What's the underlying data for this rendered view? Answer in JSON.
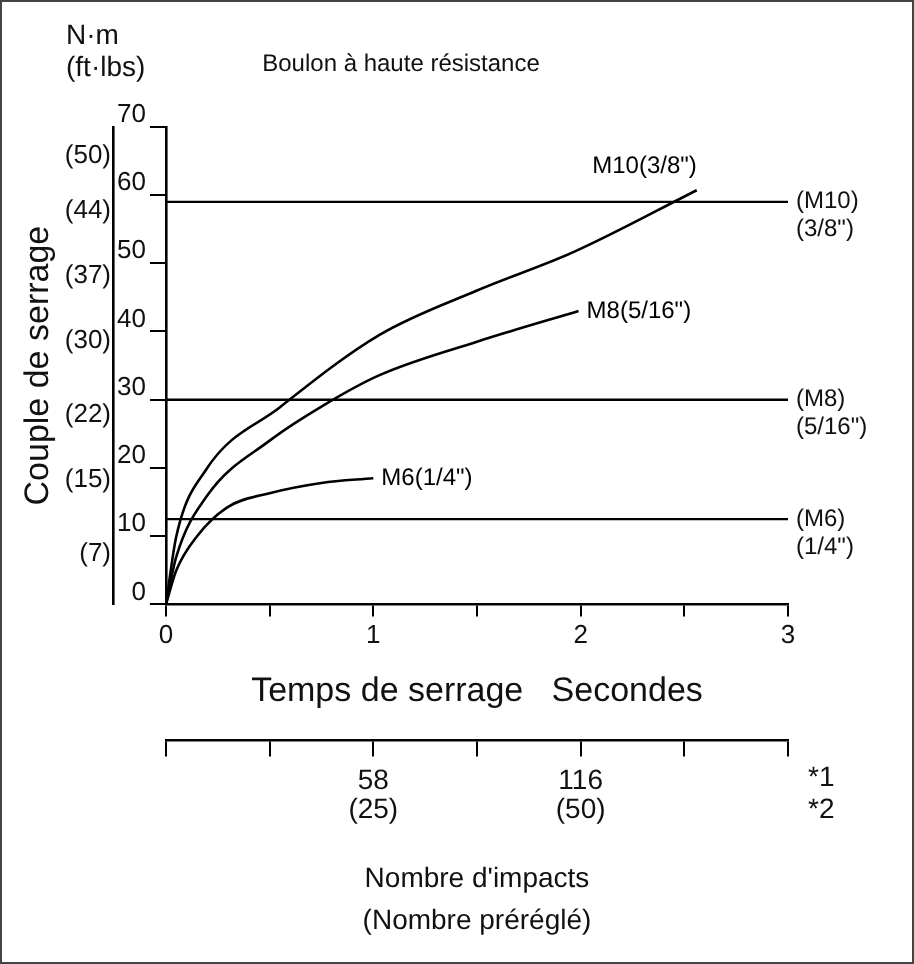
{
  "chart_data": {
    "type": "line",
    "title": "Boulon à haute résistance",
    "y2label": "Couple de serrage",
    "xlabel": "Temps de serrage   Secondes",
    "x2label": "Nombre d'impacts\n(Nombre préréglé)",
    "annotations": [
      "N·m\n(ft·lbs)",
      "(25)",
      "(50)",
      "*1",
      "*2"
    ],
    "xlim": [
      0,
      3
    ],
    "xticks": [
      0,
      {
        "value": 0.5,
        "label": null
      },
      1,
      {
        "value": 1.5,
        "label": null
      },
      2,
      {
        "value": 2.5,
        "label": null
      },
      3
    ],
    "x2lim": [
      0,
      174
    ],
    "x2ticks": [
      {
        "value": 0,
        "label": null
      },
      {
        "value": 29,
        "label": null
      },
      58,
      {
        "value": 87,
        "label": null
      },
      116,
      {
        "value": 145,
        "label": null
      },
      {
        "value": 174,
        "label": null
      }
    ],
    "ylim": [
      0,
      70
    ],
    "yticks": [
      0,
      10,
      20,
      30,
      40,
      50,
      60,
      70
    ],
    "y2lim": [
      0,
      51.6
    ],
    "y2ticks": [
      {
        "value": 7,
        "label": "(7)"
      },
      {
        "value": 15,
        "label": "(15)"
      },
      {
        "value": 22,
        "label": "(22)"
      },
      {
        "value": 30,
        "label": "(30)"
      },
      {
        "value": 37,
        "label": "(37)"
      },
      {
        "value": 44,
        "label": "(44)"
      },
      {
        "value": 50,
        "label": "(50)"
      }
    ],
    "grid": false,
    "legend": false,
    "marker": "none",
    "line_style": "solid",
    "ref_lines": [
      {
        "axis": "y",
        "value": 59,
        "label": "(M10)\n(3/8\")"
      },
      {
        "axis": "y",
        "value": 30,
        "label": "(M8)\n(5/16\")"
      },
      {
        "axis": "y",
        "value": 12.5,
        "label": "(M6)\n(1/4\")"
      }
    ],
    "series": [
      {
        "name": "M10(3/8\")",
        "color": "#000000",
        "x": [
          0,
          0.05,
          0.19,
          0.55,
          1.03,
          1.5,
          1.97,
          2.56
        ],
        "values": [
          0,
          10,
          19.6,
          28.9,
          39.5,
          46,
          51.7,
          60.7
        ]
      },
      {
        "name": "M8(5/16\")",
        "color": "#000000",
        "x": [
          0,
          0.05,
          0.2,
          0.5,
          0.75,
          1.03,
          1.5,
          1.99
        ],
        "values": [
          0,
          7,
          16,
          24,
          29,
          33.6,
          38.5,
          43
        ]
      },
      {
        "name": "M6(1/4\")",
        "color": "#000000",
        "x": [
          0,
          0.05,
          0.15,
          0.3,
          0.5,
          0.75,
          1.0
        ],
        "values": [
          0,
          5,
          10,
          14.3,
          16.3,
          17.8,
          18.5
        ]
      }
    ]
  }
}
